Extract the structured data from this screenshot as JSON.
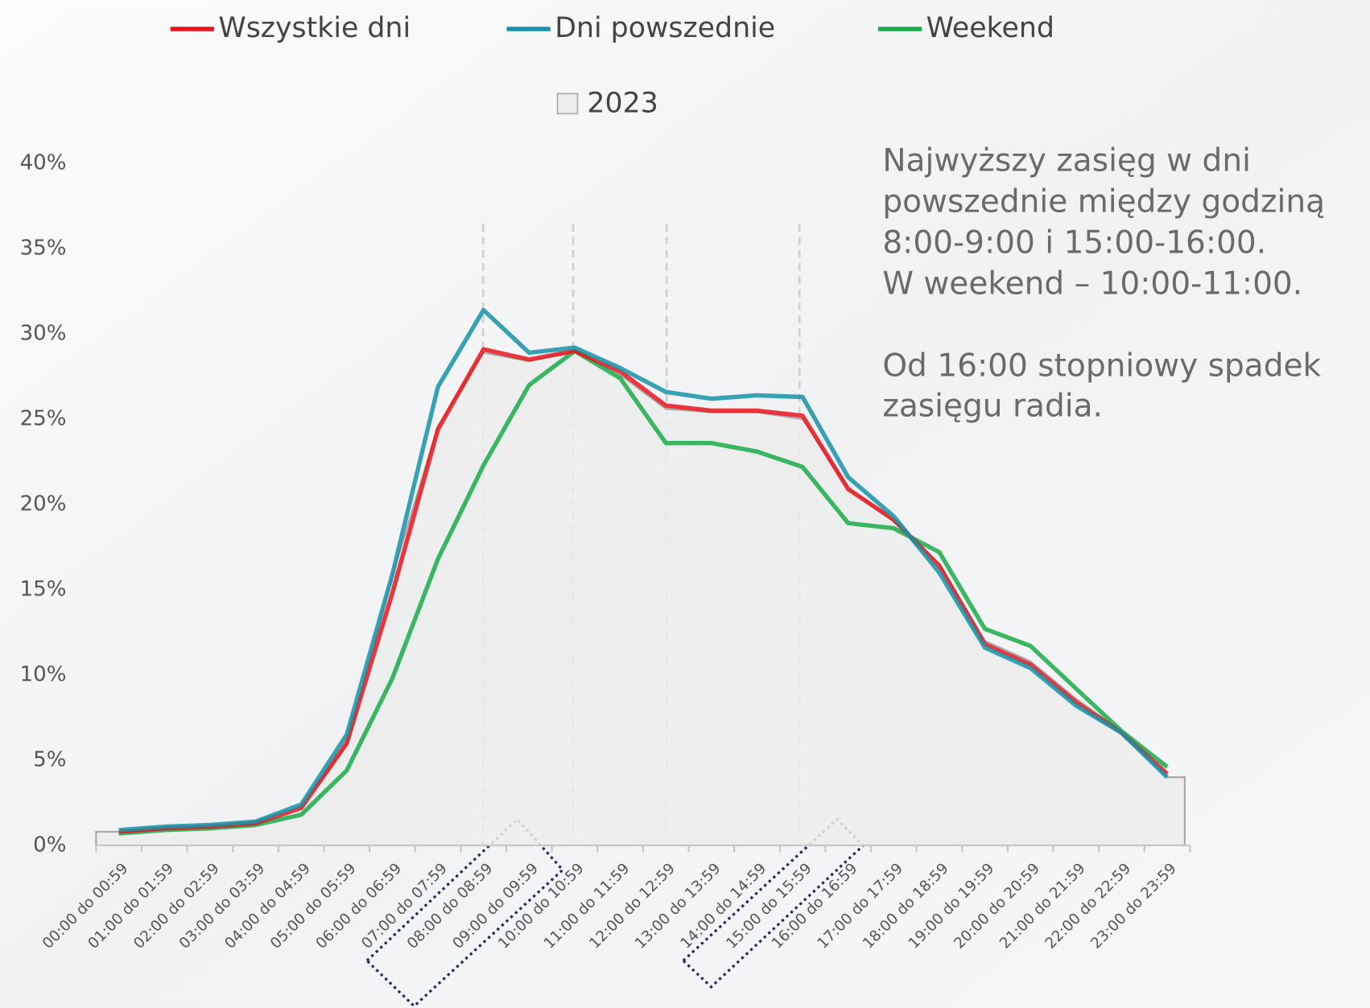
{
  "chart_data": {
    "type": "line",
    "categories": [
      "00:00 do 00:59",
      "01:00 do 01:59",
      "02:00 do 02:59",
      "03:00 do 03:59",
      "04:00 do 04:59",
      "05:00 do 05:59",
      "06:00 do 06:59",
      "07:00 do 07:59",
      "08:00 do 08:59",
      "09:00 do 09:59",
      "10:00 do 10:59",
      "11:00 do 11:59",
      "12:00 do 12:59",
      "13:00 do 13:59",
      "14:00 do 14:59",
      "15:00 do 15:59",
      "16:00 do 16:59",
      "17:00 do 17:59",
      "18:00 do 18:59",
      "19:00 do 19:59",
      "20:00 do 20:59",
      "21:00 do 21:59",
      "22:00 do 22:59",
      "23:00 do 23:59"
    ],
    "series": [
      {
        "name": "2023",
        "color": "#d9d9d9",
        "area": true,
        "values": [
          0.8,
          1.0,
          1.1,
          1.4,
          2.3,
          5.9,
          15.8,
          24.6,
          28.9,
          28.4,
          29.0,
          27.6,
          25.6,
          25.4,
          25.4,
          25.0,
          21.0,
          19.0,
          16.5,
          12.0,
          10.8,
          8.6,
          6.7,
          4.0
        ]
      },
      {
        "name": "Weekend",
        "color": "#1aab4a",
        "values": [
          0.7,
          0.9,
          1.0,
          1.2,
          1.8,
          4.4,
          9.8,
          16.8,
          22.3,
          27.0,
          29.0,
          27.4,
          23.6,
          23.6,
          23.1,
          22.2,
          18.9,
          18.6,
          17.2,
          12.7,
          11.7,
          9.2,
          6.7,
          4.6
        ]
      },
      {
        "name": "Wszystkie dni",
        "color": "#e8141c",
        "values": [
          0.8,
          1.0,
          1.1,
          1.3,
          2.2,
          6.0,
          14.8,
          24.4,
          29.1,
          28.5,
          29.0,
          27.8,
          25.8,
          25.5,
          25.5,
          25.2,
          20.9,
          19.1,
          16.4,
          11.8,
          10.6,
          8.4,
          6.6,
          4.2
        ]
      },
      {
        "name": "Dni powszednie",
        "color": "#1693a8",
        "values": [
          0.9,
          1.1,
          1.2,
          1.4,
          2.4,
          6.5,
          15.9,
          26.9,
          31.4,
          28.9,
          29.2,
          28.0,
          26.6,
          26.2,
          26.4,
          26.3,
          21.6,
          19.3,
          16.0,
          11.6,
          10.4,
          8.2,
          6.6,
          4.0
        ]
      }
    ],
    "ylim": [
      0,
      40
    ],
    "yticks": [
      {
        "value": 0,
        "label": "0%"
      },
      {
        "value": 5,
        "label": "5%"
      },
      {
        "value": 10,
        "label": "10%"
      },
      {
        "value": 15,
        "label": "15%"
      },
      {
        "value": 20,
        "label": "20%"
      },
      {
        "value": 25,
        "label": "25%"
      },
      {
        "value": 30,
        "label": "30%"
      },
      {
        "value": 35,
        "label": "35%"
      },
      {
        "value": 40,
        "label": "40%"
      }
    ],
    "annotation": [
      "Najwyższy zasięg w dni",
      "powszednie między godziną",
      "8:00-9:00 i 15:00-16:00.",
      "W weekend – 10:00-11:00.",
      "Od 16:00 stopniowy spadek",
      "zasięgu radia."
    ]
  }
}
